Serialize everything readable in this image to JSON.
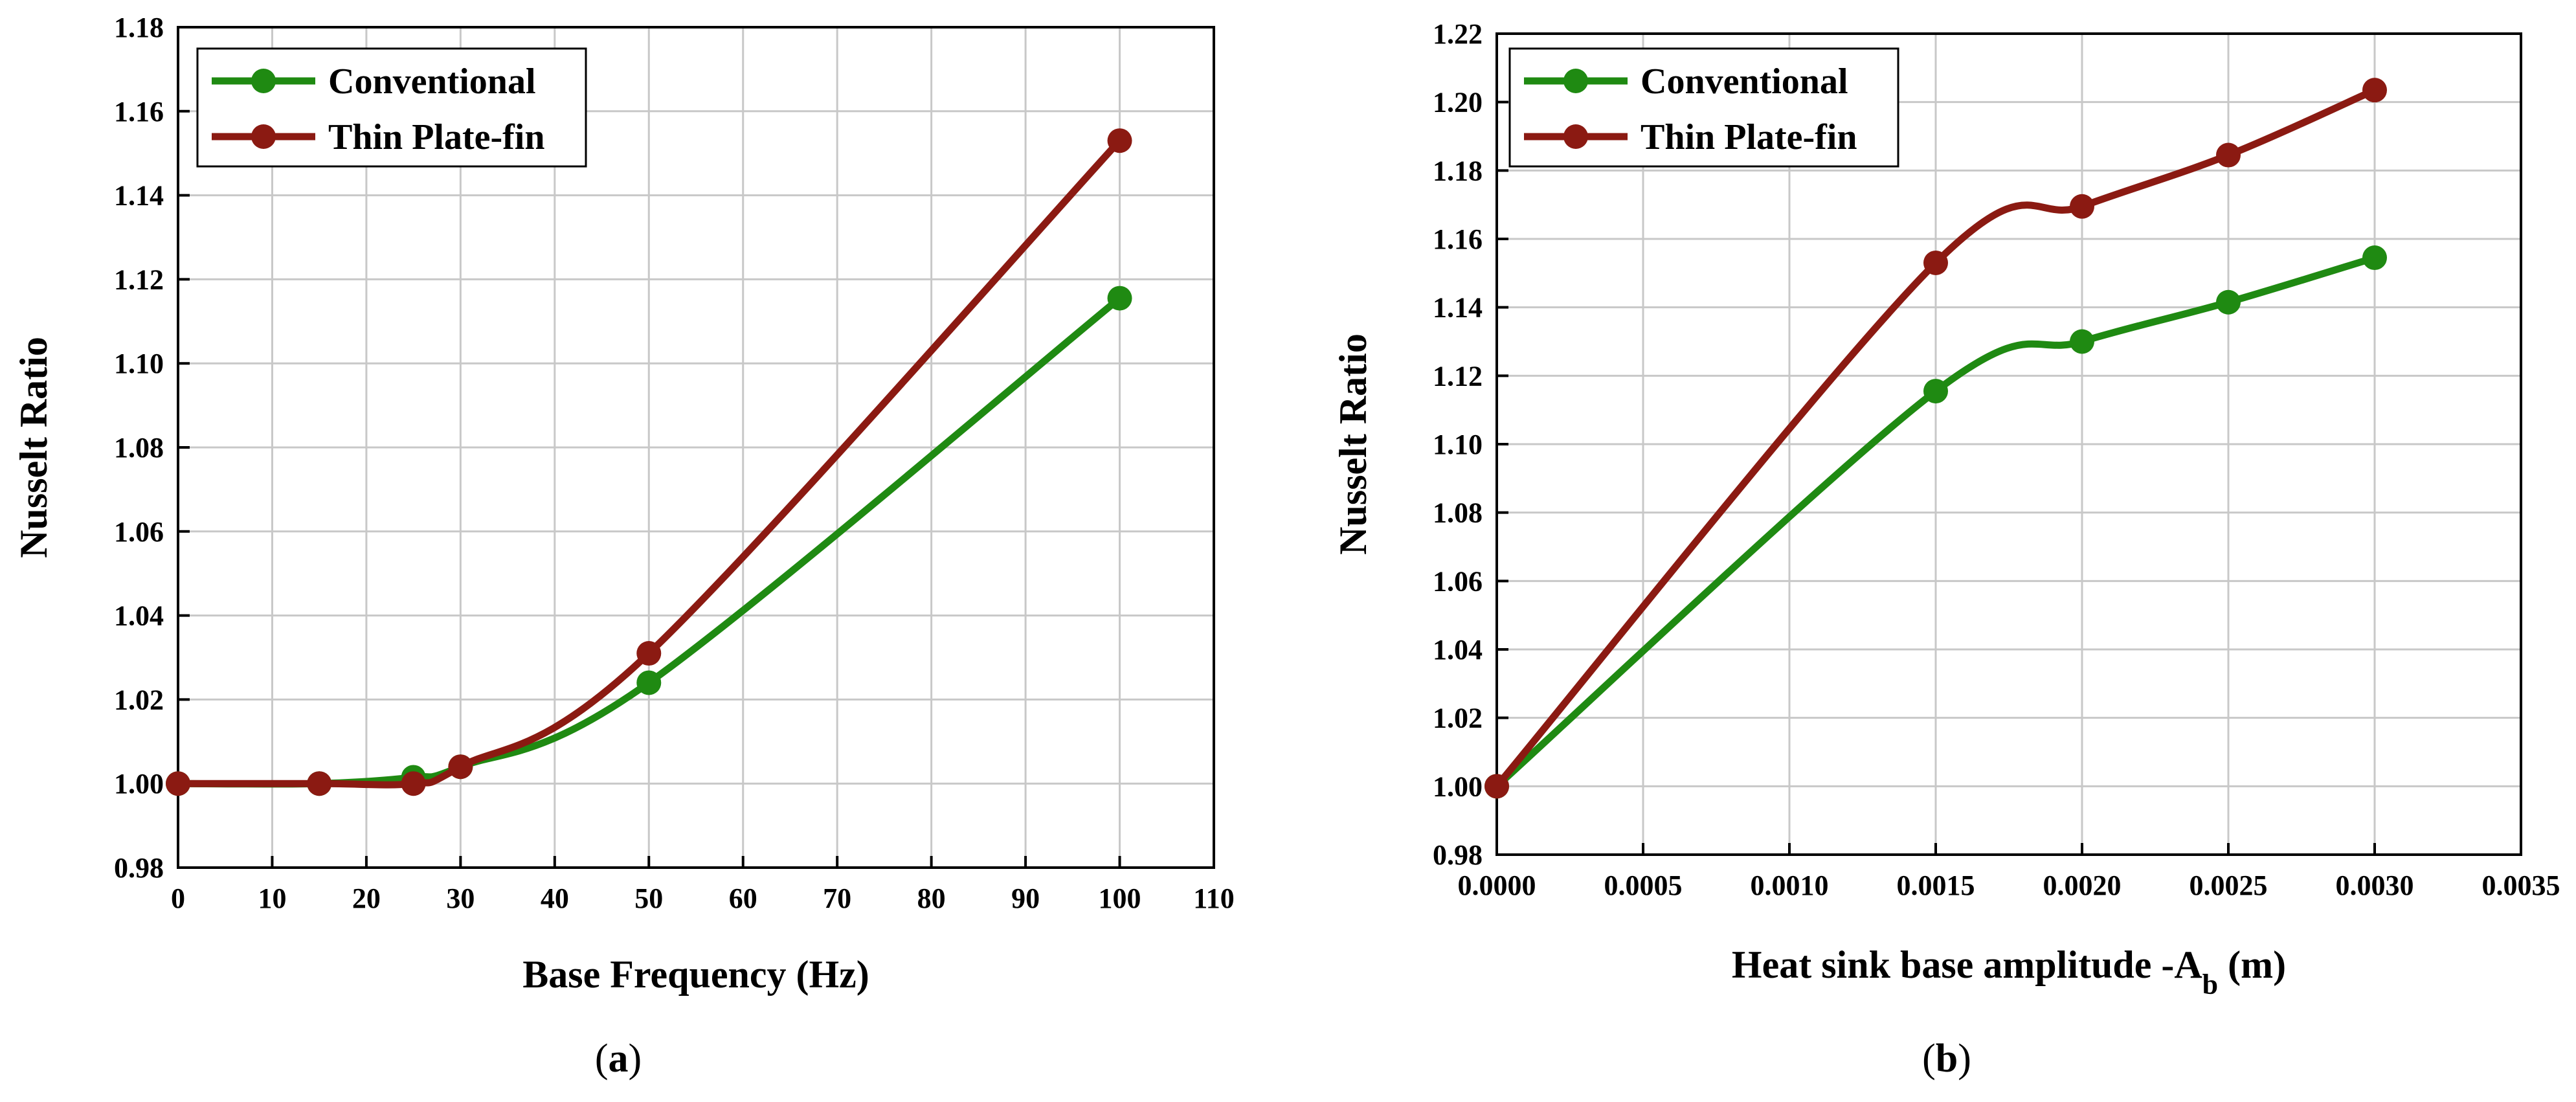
{
  "chart_data": [
    {
      "type": "line",
      "panel_label": "(a)",
      "xlabel": "Base Frequency (Hz)",
      "ylabel": "Nusselt Ratio",
      "xlim": [
        0,
        110
      ],
      "ylim": [
        0.98,
        1.18
      ],
      "xticks": [
        "0",
        "10",
        "20",
        "30",
        "40",
        "50",
        "60",
        "70",
        "80",
        "90",
        "100",
        "110"
      ],
      "yticks": [
        "0.98",
        "1.00",
        "1.02",
        "1.04",
        "1.06",
        "1.08",
        "1.10",
        "1.12",
        "1.14",
        "1.16",
        "1.18"
      ],
      "grid": true,
      "legend_position": "top-left",
      "series": [
        {
          "name": "Conventional",
          "color": "#1f8a12",
          "x": [
            0,
            15,
            25,
            30,
            50,
            100
          ],
          "y": [
            1.0,
            1.0,
            1.0015,
            1.004,
            1.024,
            1.1155
          ]
        },
        {
          "name": "Thin Plate-fin",
          "color": "#8b1a12",
          "x": [
            0,
            15,
            25,
            30,
            50,
            100
          ],
          "y": [
            1.0,
            1.0,
            1.0,
            1.004,
            1.031,
            1.153
          ]
        }
      ]
    },
    {
      "type": "line",
      "panel_label": "(b)",
      "xlabel": "Heat sink base amplitude -A",
      "xlabel_sub": "b",
      "xlabel_tail": " (m)",
      "ylabel": "Nusselt Ratio",
      "xlim": [
        0,
        0.0035
      ],
      "ylim": [
        0.98,
        1.22
      ],
      "xticks": [
        "0.0000",
        "0.0005",
        "0.0010",
        "0.0015",
        "0.0020",
        "0.0025",
        "0.0030",
        "0.0035"
      ],
      "yticks": [
        "0.98",
        "1.00",
        "1.02",
        "1.04",
        "1.06",
        "1.08",
        "1.10",
        "1.12",
        "1.14",
        "1.16",
        "1.18",
        "1.20",
        "1.22"
      ],
      "grid": true,
      "legend_position": "top-left",
      "series": [
        {
          "name": "Conventional",
          "color": "#1f8a12",
          "x": [
            0,
            0.0015,
            0.002,
            0.0025,
            0.003
          ],
          "y": [
            1.0,
            1.1155,
            1.13,
            1.1415,
            1.1545
          ]
        },
        {
          "name": "Thin Plate-fin",
          "color": "#8b1a12",
          "x": [
            0,
            0.0015,
            0.002,
            0.0025,
            0.003
          ],
          "y": [
            1.0,
            1.153,
            1.1695,
            1.1845,
            1.2035
          ]
        }
      ]
    }
  ]
}
